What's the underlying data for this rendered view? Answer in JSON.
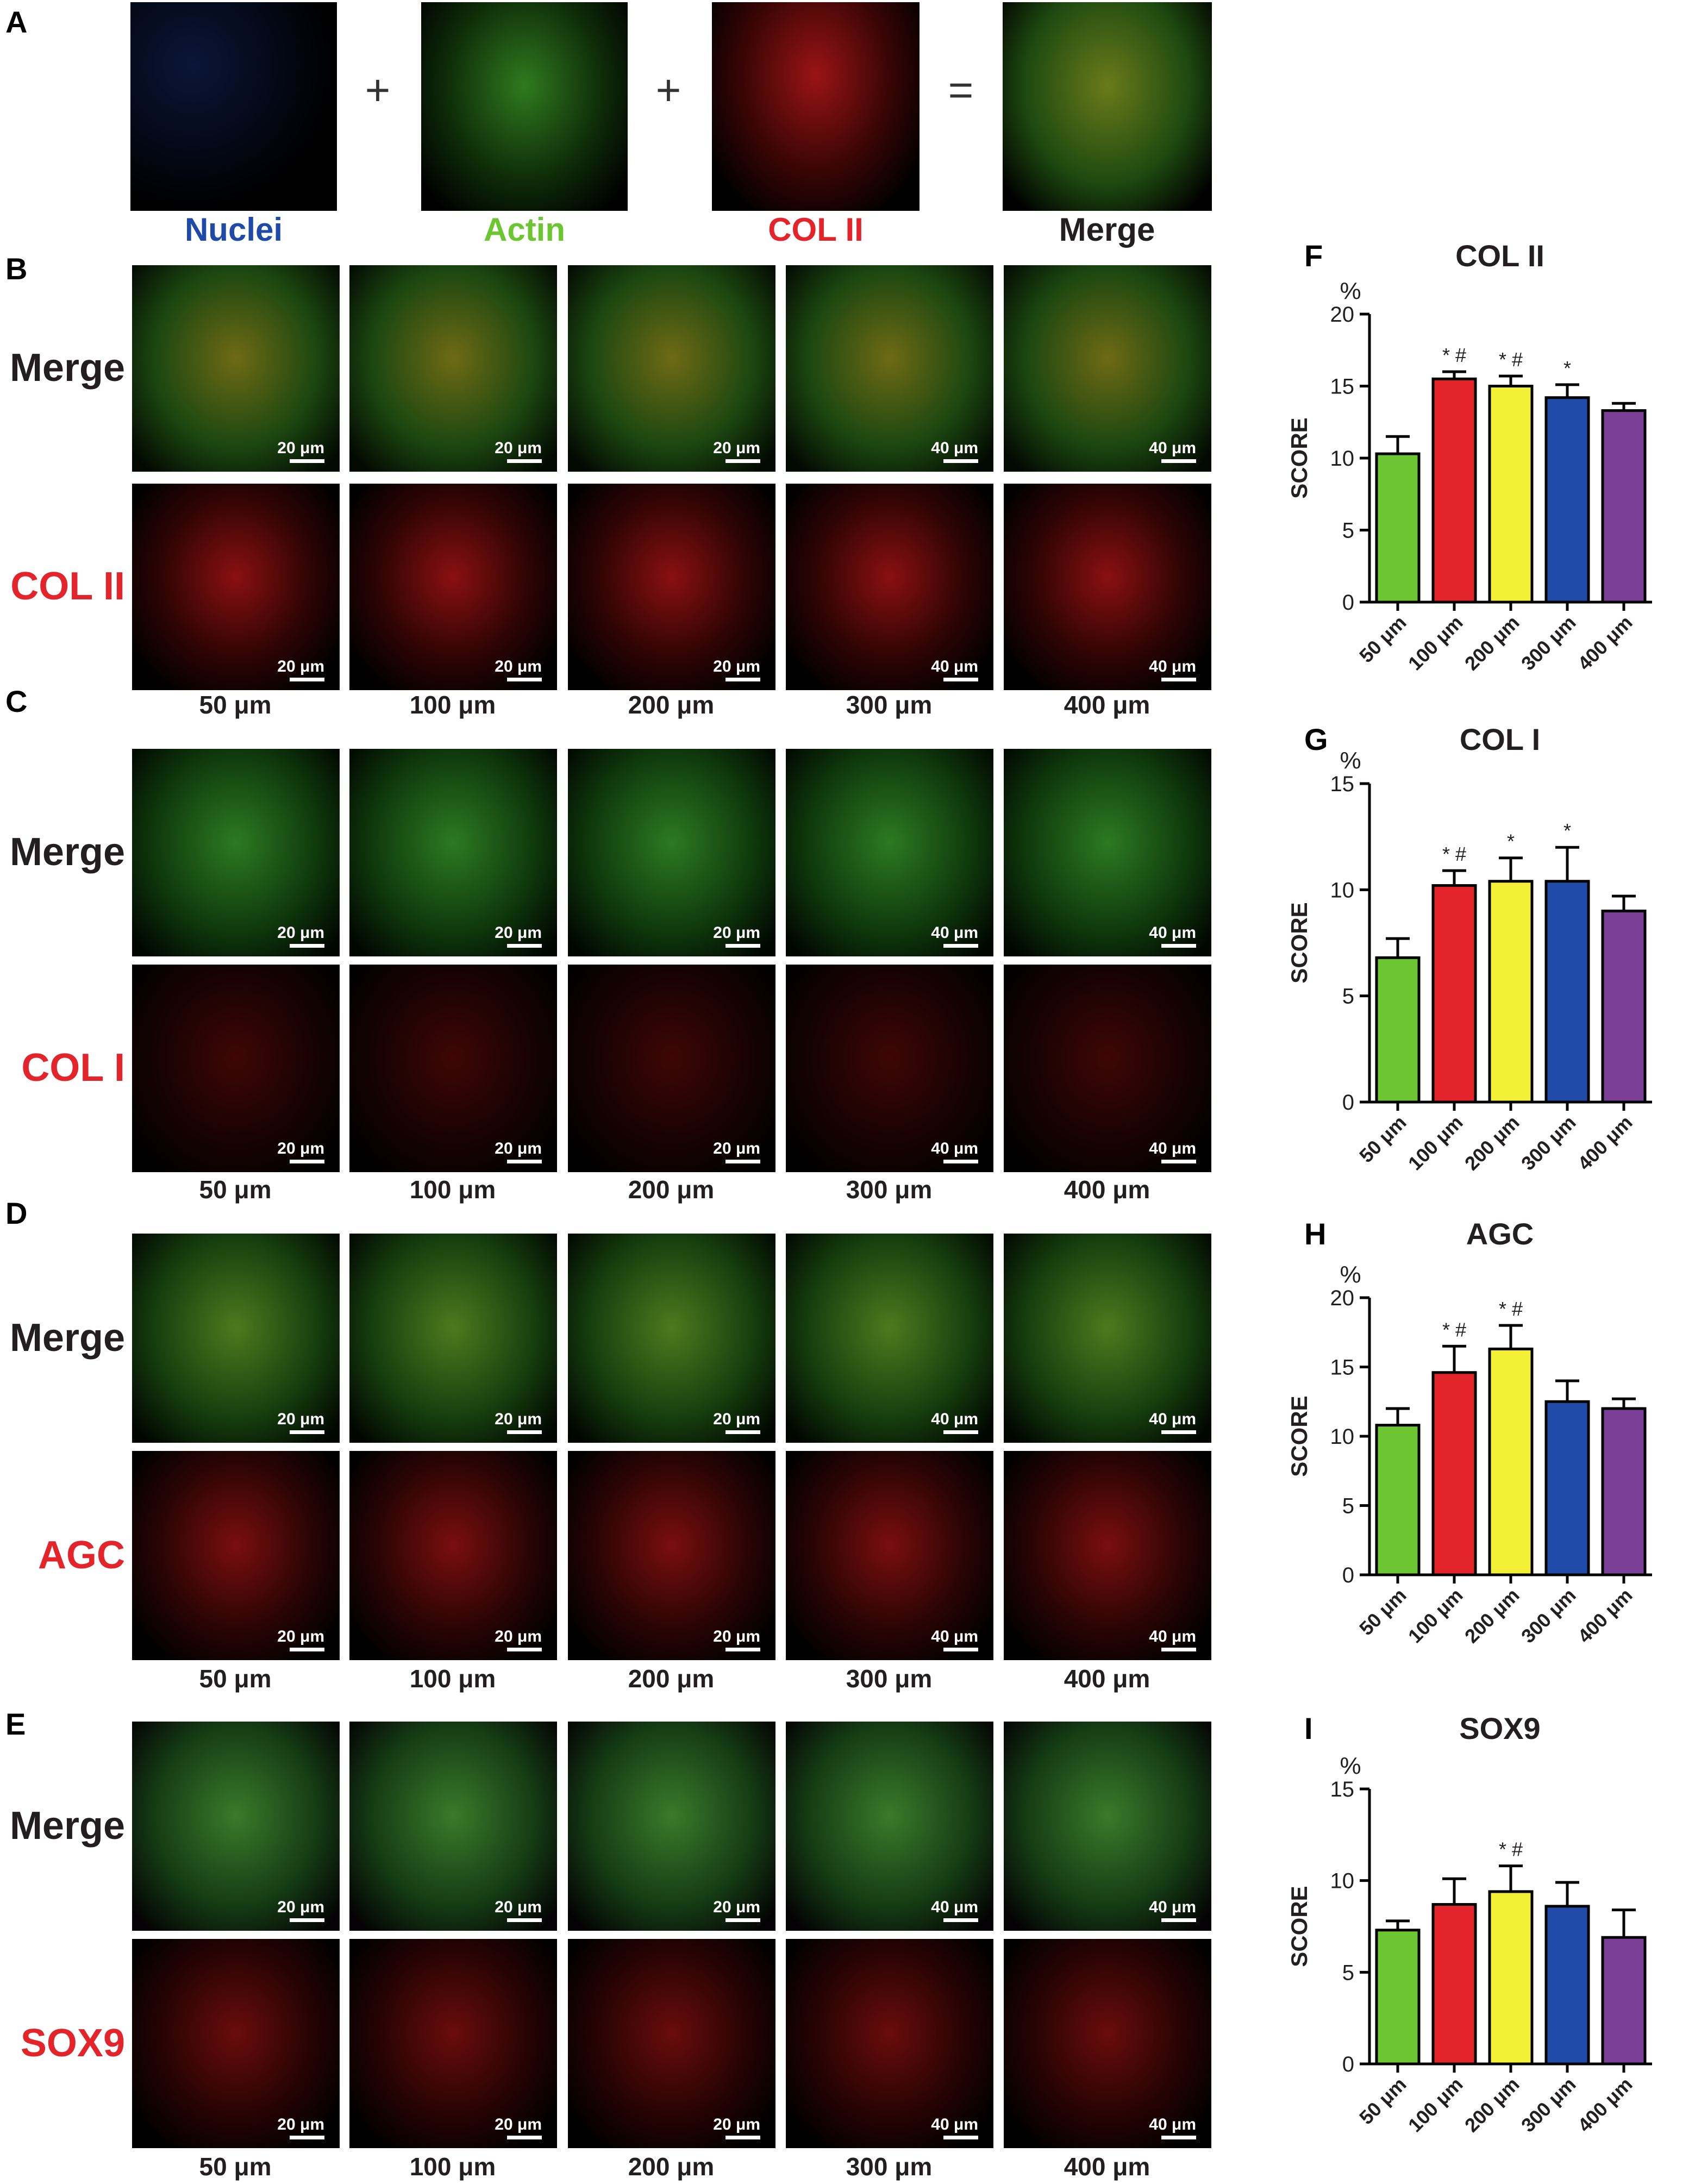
{
  "panels": {
    "A": {
      "letter": "A",
      "labels": [
        "Nuclei",
        "Actin",
        "COL II",
        "Merge"
      ],
      "label_colors": [
        "#1f4aa8",
        "#6cc632",
        "#e3242b",
        "#231f20"
      ],
      "operators": [
        "+",
        "+",
        "="
      ]
    },
    "B": {
      "letter": "B",
      "rows": [
        "Merge",
        "COL II"
      ],
      "row_colors": [
        "#231f20",
        "#e3242b"
      ]
    },
    "C": {
      "letter": "C",
      "rows": [
        "Merge",
        "COL I"
      ],
      "row_colors": [
        "#231f20",
        "#e3242b"
      ]
    },
    "D": {
      "letter": "D",
      "rows": [
        "Merge",
        "AGC"
      ],
      "row_colors": [
        "#231f20",
        "#e3242b"
      ]
    },
    "E": {
      "letter": "E",
      "rows": [
        "Merge",
        "SOX9"
      ],
      "row_colors": [
        "#231f20",
        "#e3242b"
      ]
    }
  },
  "pore_sizes": [
    "50 μm",
    "100 μm",
    "200 μm",
    "300 μm",
    "400 μm"
  ],
  "scale_bars": [
    "20 μm",
    "20 μm",
    "20 μm",
    "40 μm",
    "40 μm"
  ],
  "bar_colors": [
    "#6cc632",
    "#e3242b",
    "#f2ef35",
    "#1f4aa8",
    "#7b3f98"
  ],
  "chart_data": [
    {
      "panel": "F",
      "type": "bar",
      "title": "COL II",
      "ylabel": "SCORE",
      "unit": "%",
      "categories": [
        "50 μm",
        "100 μm",
        "200 μm",
        "300 μm",
        "400 μm"
      ],
      "values": [
        10.3,
        15.5,
        15.0,
        14.2,
        13.3
      ],
      "errors": [
        1.2,
        0.5,
        0.7,
        0.9,
        0.5
      ],
      "significance": [
        "",
        "* #",
        "* #",
        "*",
        ""
      ],
      "ylim": [
        0,
        20
      ],
      "yticks": [
        0,
        5,
        10,
        15,
        20
      ]
    },
    {
      "panel": "G",
      "type": "bar",
      "title": "COL I",
      "ylabel": "SCORE",
      "unit": "%",
      "categories": [
        "50 μm",
        "100 μm",
        "200 μm",
        "300 μm",
        "400 μm"
      ],
      "values": [
        6.8,
        10.2,
        10.4,
        10.4,
        9.0
      ],
      "errors": [
        0.9,
        0.7,
        1.1,
        1.6,
        0.7
      ],
      "significance": [
        "",
        "* #",
        "*",
        "*",
        ""
      ],
      "ylim": [
        0,
        15
      ],
      "yticks": [
        0,
        5,
        10,
        15
      ]
    },
    {
      "panel": "H",
      "type": "bar",
      "title": "AGC",
      "ylabel": "SCORE",
      "unit": "%",
      "categories": [
        "50 μm",
        "100 μm",
        "200 μm",
        "300 μm",
        "400 μm"
      ],
      "values": [
        10.8,
        14.6,
        16.3,
        12.5,
        12.0
      ],
      "errors": [
        1.2,
        1.9,
        1.7,
        1.5,
        0.7
      ],
      "significance": [
        "",
        "* #",
        "* #",
        "",
        ""
      ],
      "ylim": [
        0,
        20
      ],
      "yticks": [
        0,
        5,
        10,
        15,
        20
      ]
    },
    {
      "panel": "I",
      "type": "bar",
      "title": "SOX9",
      "ylabel": "SCORE",
      "unit": "%",
      "categories": [
        "50 μm",
        "100 μm",
        "200 μm",
        "300 μm",
        "400 μm"
      ],
      "values": [
        7.3,
        8.7,
        9.4,
        8.6,
        6.9
      ],
      "errors": [
        0.5,
        1.4,
        1.4,
        1.3,
        1.5
      ],
      "significance": [
        "",
        "",
        "* #",
        "",
        ""
      ],
      "ylim": [
        0,
        15
      ],
      "yticks": [
        0,
        5,
        10,
        15
      ]
    }
  ]
}
